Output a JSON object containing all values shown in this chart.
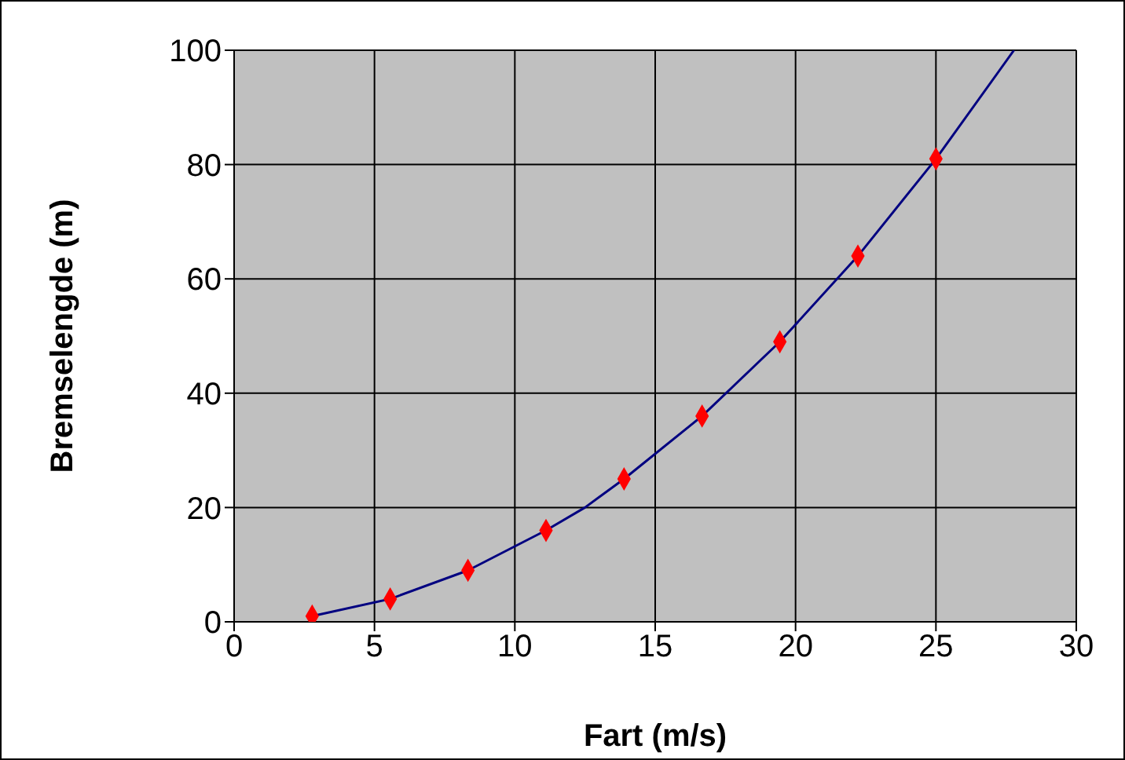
{
  "chart_data": {
    "type": "scatter",
    "xlabel": "Fart (m/s)",
    "ylabel": "Bremselengde (m)",
    "series": [
      {
        "type": "line",
        "color": "#000080",
        "marker": "none",
        "x": [
          2.78,
          5.56,
          8.33,
          11.11,
          12.5,
          13.89,
          16.67,
          19.44,
          22.22,
          25,
          27.78
        ],
        "values": [
          1,
          4,
          9,
          16,
          20,
          25,
          36,
          49,
          64,
          81,
          100
        ]
      },
      {
        "color": "#ff0000",
        "marker": "diamond",
        "x": [
          2.78,
          5.56,
          8.33,
          11.11,
          13.89,
          16.67,
          19.44,
          22.22,
          25
        ],
        "values": [
          1,
          4,
          9,
          16,
          25,
          36,
          49,
          64,
          81
        ]
      }
    ],
    "xlim": [
      0,
      30
    ],
    "xticks": [
      0,
      5,
      10,
      15,
      20,
      25,
      30
    ],
    "ylim": [
      0,
      100
    ],
    "yticks": [
      0,
      20,
      40,
      60,
      80,
      100
    ],
    "grid": true,
    "legend": false
  }
}
